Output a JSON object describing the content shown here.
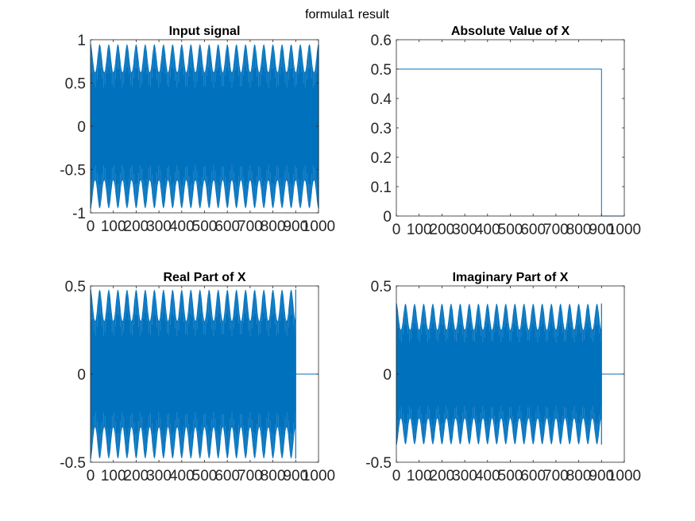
{
  "figure": {
    "suptitle": "formula1 result"
  },
  "colors": {
    "series": "#0072BD",
    "axis": "#262626",
    "background": "#ffffff"
  },
  "chart_data": [
    {
      "type": "line",
      "title": "Input signal",
      "xlabel": "",
      "ylabel": "",
      "xlim": [
        0,
        1000
      ],
      "ylim": [
        -1,
        1
      ],
      "xticks": [
        0,
        100,
        200,
        300,
        400,
        500,
        600,
        700,
        800,
        900,
        1000
      ],
      "xtick_labels": [
        "0",
        "100",
        "200",
        "300",
        "400",
        "500",
        "600",
        "700",
        "800",
        "900",
        "1000"
      ],
      "yticks": [
        -1,
        -0.5,
        0,
        0.5,
        1
      ],
      "ytick_labels": [
        "-1",
        "-0.5",
        "0",
        "0.5",
        "1"
      ],
      "series": [
        {
          "style": "dense-oscillation",
          "x_range": [
            1,
            1000
          ],
          "amplitude_max": 0.95,
          "amplitude_min": 0.62,
          "end_value": null
        }
      ],
      "grid": false,
      "legend": "none"
    },
    {
      "type": "line",
      "title": "Absolute Value of X",
      "xlabel": "",
      "ylabel": "",
      "xlim": [
        0,
        1000
      ],
      "ylim": [
        0,
        0.6
      ],
      "xticks": [
        0,
        100,
        200,
        300,
        400,
        500,
        600,
        700,
        800,
        900,
        1000
      ],
      "xtick_labels": [
        "0",
        "100",
        "200",
        "300",
        "400",
        "500",
        "600",
        "700",
        "800",
        "900",
        "1000"
      ],
      "yticks": [
        0,
        0.1,
        0.2,
        0.3,
        0.4,
        0.5,
        0.6
      ],
      "ytick_labels": [
        "0",
        "0.1",
        "0.2",
        "0.3",
        "0.4",
        "0.5",
        "0.6"
      ],
      "series": [
        {
          "style": "step",
          "points": [
            [
              1,
              0.5
            ],
            [
              900,
              0.5
            ],
            [
              900,
              0
            ],
            [
              1000,
              0
            ]
          ]
        }
      ],
      "grid": false,
      "legend": "none"
    },
    {
      "type": "line",
      "title": "Real Part of X",
      "xlabel": "",
      "ylabel": "",
      "xlim": [
        0,
        1000
      ],
      "ylim": [
        -0.5,
        0.5
      ],
      "xticks": [
        0,
        100,
        200,
        300,
        400,
        500,
        600,
        700,
        800,
        900,
        1000
      ],
      "xtick_labels": [
        "0",
        "100",
        "200",
        "300",
        "400",
        "500",
        "600",
        "700",
        "800",
        "900",
        "1000"
      ],
      "yticks": [
        -0.5,
        0,
        0.5
      ],
      "ytick_labels": [
        "-0.5",
        "0",
        "0.5"
      ],
      "series": [
        {
          "style": "dense-oscillation",
          "x_range": [
            1,
            900
          ],
          "amplitude_max": 0.48,
          "amplitude_min": 0.3,
          "end_value": 0
        }
      ],
      "grid": false,
      "legend": "none"
    },
    {
      "type": "line",
      "title": "Imaginary Part of X",
      "xlabel": "",
      "ylabel": "",
      "xlim": [
        0,
        1000
      ],
      "ylim": [
        -0.5,
        0.5
      ],
      "xticks": [
        0,
        100,
        200,
        300,
        400,
        500,
        600,
        700,
        800,
        900,
        1000
      ],
      "xtick_labels": [
        "0",
        "100",
        "200",
        "300",
        "400",
        "500",
        "600",
        "700",
        "800",
        "900",
        "1000"
      ],
      "yticks": [
        -0.5,
        0,
        0.5
      ],
      "ytick_labels": [
        "-0.5",
        "0",
        "0.5"
      ],
      "series": [
        {
          "style": "dense-oscillation",
          "x_range": [
            1,
            900
          ],
          "amplitude_max": 0.4,
          "amplitude_min": 0.25,
          "end_value": 0
        }
      ],
      "grid": false,
      "legend": "none"
    }
  ]
}
